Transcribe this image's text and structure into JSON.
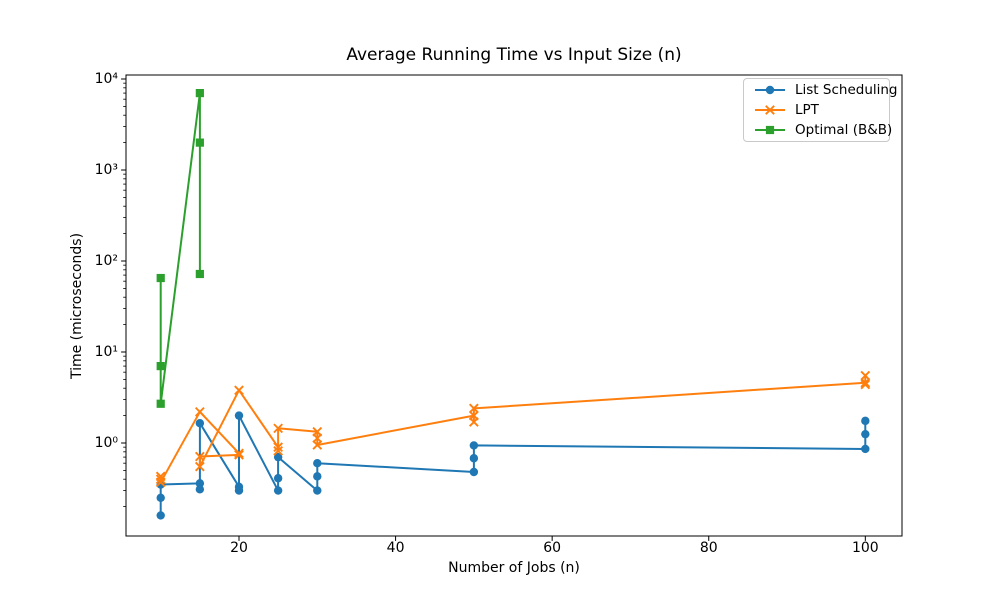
{
  "chart_data": {
    "type": "line",
    "title": "Average Running Time vs Input Size (n)",
    "xlabel": "Number of Jobs (n)",
    "ylabel": "Time (microseconds)",
    "x_scale": "linear",
    "y_scale": "log",
    "xlim": [
      5.6,
      104.7
    ],
    "ylim": [
      0.105,
      11000
    ],
    "x_ticks": [
      20,
      40,
      60,
      80,
      100
    ],
    "y_tick_exponents": [
      0,
      1,
      2,
      3,
      4
    ],
    "grid": false,
    "legend_position": "upper right",
    "series": [
      {
        "name": "List Scheduling",
        "color": "#1f77b4",
        "marker": "circle",
        "points": [
          [
            10,
            0.16
          ],
          [
            10,
            0.25
          ],
          [
            10,
            0.35
          ],
          [
            15,
            0.36
          ],
          [
            15,
            0.31
          ],
          [
            15,
            1.65
          ],
          [
            20,
            0.33
          ],
          [
            20,
            0.3
          ],
          [
            20,
            2.0
          ],
          [
            25,
            0.3
          ],
          [
            25,
            0.41
          ],
          [
            25,
            0.7
          ],
          [
            30,
            0.3
          ],
          [
            30,
            0.43
          ],
          [
            30,
            0.6
          ],
          [
            50,
            0.48
          ],
          [
            50,
            0.68
          ],
          [
            50,
            0.94
          ],
          [
            100,
            0.86
          ],
          [
            100,
            1.25
          ],
          [
            100,
            1.75
          ]
        ]
      },
      {
        "name": "LPT",
        "color": "#ff7f0e",
        "marker": "x",
        "points": [
          [
            10,
            0.43
          ],
          [
            10,
            0.4
          ],
          [
            10,
            0.37
          ],
          [
            15,
            2.2
          ],
          [
            20,
            0.77
          ],
          [
            20,
            0.74
          ],
          [
            15,
            0.71
          ],
          [
            15,
            0.55
          ],
          [
            20,
            3.8
          ],
          [
            25,
            0.9
          ],
          [
            25,
            0.82
          ],
          [
            25,
            1.45
          ],
          [
            30,
            1.33
          ],
          [
            30,
            1.13
          ],
          [
            30,
            0.95
          ],
          [
            50,
            2.0
          ],
          [
            50,
            1.7
          ],
          [
            50,
            2.4
          ],
          [
            100,
            4.6
          ],
          [
            100,
            4.4
          ],
          [
            100,
            5.5
          ]
        ]
      },
      {
        "name": "Optimal (B&B)",
        "color": "#2ca02c",
        "marker": "square",
        "points": [
          [
            10,
            65
          ],
          [
            10,
            7
          ],
          [
            10,
            2.7
          ],
          [
            15,
            7000
          ],
          [
            15,
            2000
          ],
          [
            15,
            72
          ]
        ]
      }
    ]
  }
}
